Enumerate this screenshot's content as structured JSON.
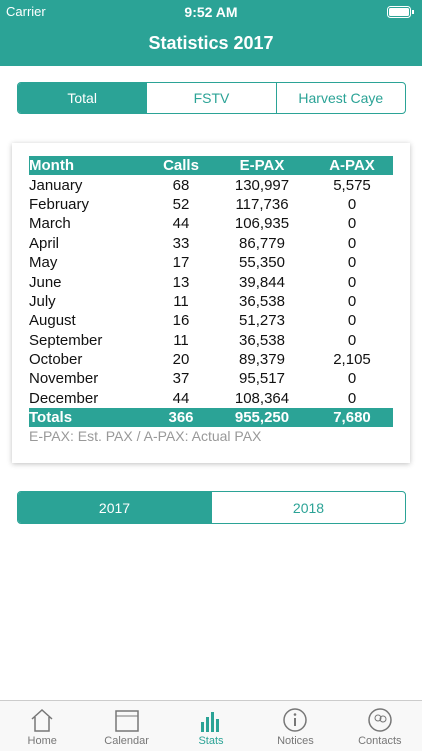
{
  "status_bar": {
    "carrier": "Carrier",
    "time": "9:52 AM"
  },
  "header": {
    "title": "Statistics 2017"
  },
  "location_tabs": [
    "Total",
    "FSTV",
    "Harvest Caye"
  ],
  "table": {
    "columns": [
      "Month",
      "Calls",
      "E-PAX",
      "A-PAX"
    ],
    "rows": [
      [
        "January",
        "68",
        "130,997",
        "5,575"
      ],
      [
        "February",
        "52",
        "117,736",
        "0"
      ],
      [
        "March",
        "44",
        "106,935",
        "0"
      ],
      [
        "April",
        "33",
        "86,779",
        "0"
      ],
      [
        "May",
        "17",
        "55,350",
        "0"
      ],
      [
        "June",
        "13",
        "39,844",
        "0"
      ],
      [
        "July",
        "11",
        "36,538",
        "0"
      ],
      [
        "August",
        "16",
        "51,273",
        "0"
      ],
      [
        "September",
        "11",
        "36,538",
        "0"
      ],
      [
        "October",
        "20",
        "89,379",
        "2,105"
      ],
      [
        "November",
        "37",
        "95,517",
        "0"
      ],
      [
        "December",
        "44",
        "108,364",
        "0"
      ]
    ],
    "totals": [
      "Totals",
      "366",
      "955,250",
      "7,680"
    ],
    "note": "E-PAX: Est. PAX / A-PAX: Actual PAX"
  },
  "year_tabs": [
    "2017",
    "2018"
  ],
  "tab_bar": [
    "Home",
    "Calendar",
    "Stats",
    "Notices",
    "Contacts"
  ]
}
